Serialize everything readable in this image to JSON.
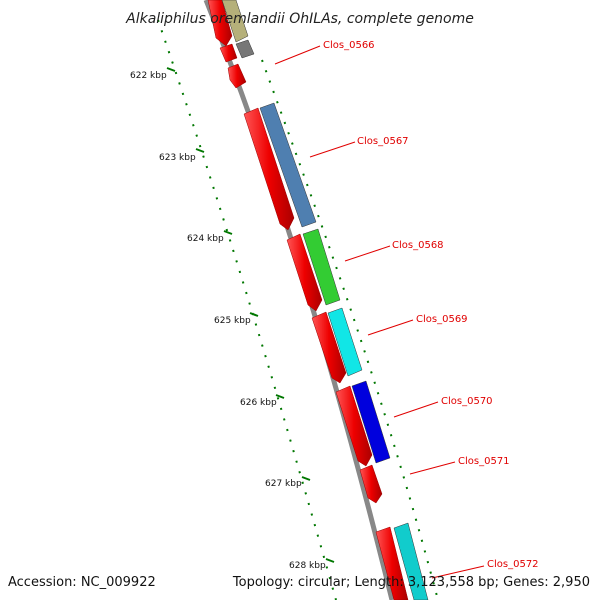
{
  "title": "Alkaliphilus oremlandii OhILAs, complete genome",
  "accession": "Accession: NC_009922",
  "summary": "Topology: circular; Length: 3,123,558 bp; Genes: 2,950",
  "colors": {
    "backbone": "#888888",
    "tick": "#007700",
    "feature": "#ee0000",
    "label": "#e00000"
  },
  "ticks": [
    "622 kbp",
    "623 kbp",
    "624 kbp",
    "625 kbp",
    "626 kbp",
    "627 kbp",
    "628 kbp"
  ],
  "genes": [
    "Clos_0566",
    "Clos_0567",
    "Clos_0568",
    "Clos_0569",
    "Clos_0570",
    "Clos_0571",
    "Clos_0572"
  ],
  "feature_colors": [
    "#b5b07a",
    "#777777",
    "#4f7fb0",
    "#33cc33",
    "#11e6e6",
    "#0000dd",
    "#11cccc"
  ]
}
